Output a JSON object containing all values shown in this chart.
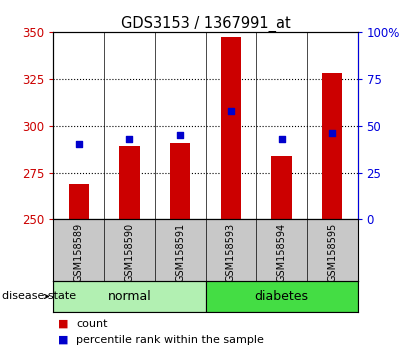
{
  "title": "GDS3153 / 1367991_at",
  "samples": [
    "GSM158589",
    "GSM158590",
    "GSM158591",
    "GSM158593",
    "GSM158594",
    "GSM158595"
  ],
  "counts": [
    269,
    289,
    291,
    347,
    284,
    328
  ],
  "percentiles": [
    40,
    43,
    45,
    58,
    43,
    46
  ],
  "y_min": 250,
  "y_max": 350,
  "y_ticks": [
    250,
    275,
    300,
    325,
    350
  ],
  "y_right_ticks": [
    0,
    25,
    50,
    75,
    100
  ],
  "y_right_labels": [
    "0",
    "25",
    "50",
    "75",
    "100%"
  ],
  "bar_color": "#cc0000",
  "dot_color": "#0000cc",
  "normal_color": "#b2f0b2",
  "diabetes_color": "#44dd44",
  "normal_label": "normal",
  "diabetes_label": "diabetes",
  "group_label": "disease state",
  "legend_count": "count",
  "legend_percentile": "percentile rank within the sample",
  "axis_bg": "#c8c8c8",
  "grid_lines": [
    275,
    300,
    325
  ]
}
